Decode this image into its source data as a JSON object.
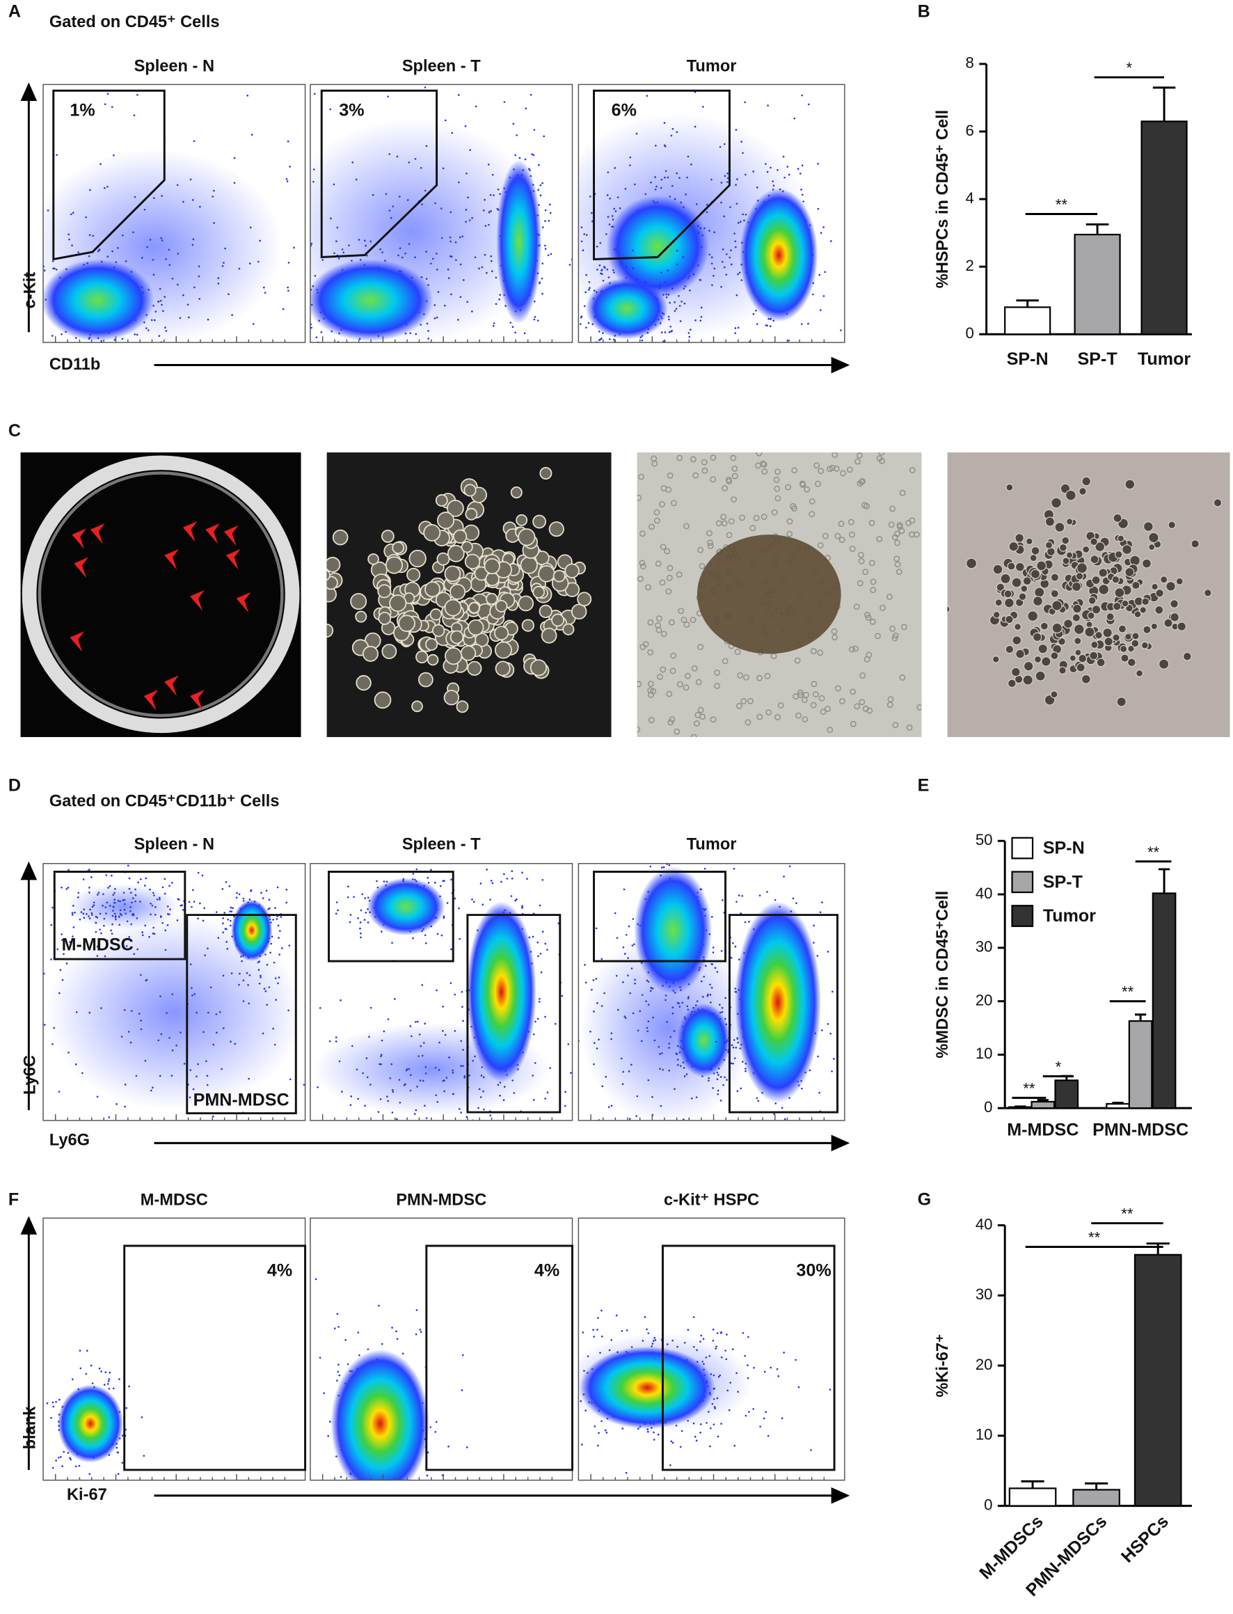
{
  "panel_letters": [
    "A",
    "B",
    "C",
    "D",
    "E",
    "F",
    "G"
  ],
  "flow_panels": [
    {
      "title": "Gated on CD45⁺ Cells",
      "x_label": "CD11b",
      "y_label": "c-Kit",
      "plots": [
        {
          "title": "Spleen - N",
          "gates": [
            "1%"
          ]
        },
        {
          "title": "Spleen - T",
          "gates": [
            "3%"
          ]
        },
        {
          "title": "Tumor",
          "gates": [
            "6%"
          ]
        }
      ]
    },
    {
      "title": "Gated on CD45⁺CD11b⁺ Cells",
      "x_label": "Ly6G",
      "y_label": "Ly6C",
      "plots": [
        {
          "title": "Spleen - N",
          "gates": [
            "M-MDSC",
            "PMN-MDSC"
          ]
        },
        {
          "title": "Spleen - T",
          "gates": []
        },
        {
          "title": "Tumor",
          "gates": []
        }
      ]
    },
    {
      "x_label": "Ki-67",
      "y_label": "blank",
      "plots": [
        {
          "title": "M-MDSC",
          "gates": [
            "4%"
          ]
        },
        {
          "title": "PMN-MDSC",
          "gates": [
            "4%"
          ]
        },
        {
          "title": "c-Kit⁺ HSPC",
          "gates": [
            "30%"
          ]
        }
      ]
    }
  ],
  "chart_data": [
    {
      "type": "bar",
      "y_label": "%HSPCs in CD45⁺ Cell",
      "categories": [
        "SP-N",
        "SP-T",
        "Tumor"
      ],
      "values": [
        0.8,
        2.95,
        6.3
      ],
      "errors": [
        0.2,
        0.3,
        1.0
      ],
      "colors": [
        "#ffffff",
        "#a6a6a8",
        "#333333"
      ],
      "ylim": [
        0,
        8
      ],
      "yticks": [
        0,
        2,
        4,
        6,
        8
      ],
      "annotations": [
        "**",
        "*"
      ]
    },
    {
      "type": "grouped-bar",
      "y_label": "%MDSC in CD45⁺Cell",
      "categories": [
        "M-MDSC",
        "PMN-MDSC"
      ],
      "series": [
        {
          "name": "SP-N",
          "color": "#ffffff",
          "values": [
            0.2,
            0.8
          ],
          "errors": [
            0.1,
            0.2
          ]
        },
        {
          "name": "SP-T",
          "color": "#a6a6a8",
          "values": [
            1.2,
            16.3
          ],
          "errors": [
            0.3,
            1.2
          ]
        },
        {
          "name": "Tumor",
          "color": "#333333",
          "values": [
            5.2,
            40.2
          ],
          "errors": [
            0.8,
            4.5
          ]
        }
      ],
      "ylim": [
        0,
        50
      ],
      "yticks": [
        0,
        10,
        20,
        30,
        40,
        50
      ],
      "legend": "top-left",
      "annotations": [
        "**",
        "*",
        "**",
        "**"
      ]
    },
    {
      "type": "bar",
      "y_label": "%Ki-67⁺",
      "categories": [
        "M-MDSCs",
        "PMN-MDSCs",
        "HSPCs"
      ],
      "values": [
        2.5,
        2.3,
        35.8
      ],
      "errors": [
        1.0,
        0.9,
        1.6
      ],
      "colors": [
        "#ffffff",
        "#a6a6a8",
        "#333333"
      ],
      "ylim": [
        0,
        40
      ],
      "yticks": [
        0,
        10,
        20,
        30,
        40
      ],
      "annotations": [
        "**",
        "**"
      ]
    }
  ]
}
